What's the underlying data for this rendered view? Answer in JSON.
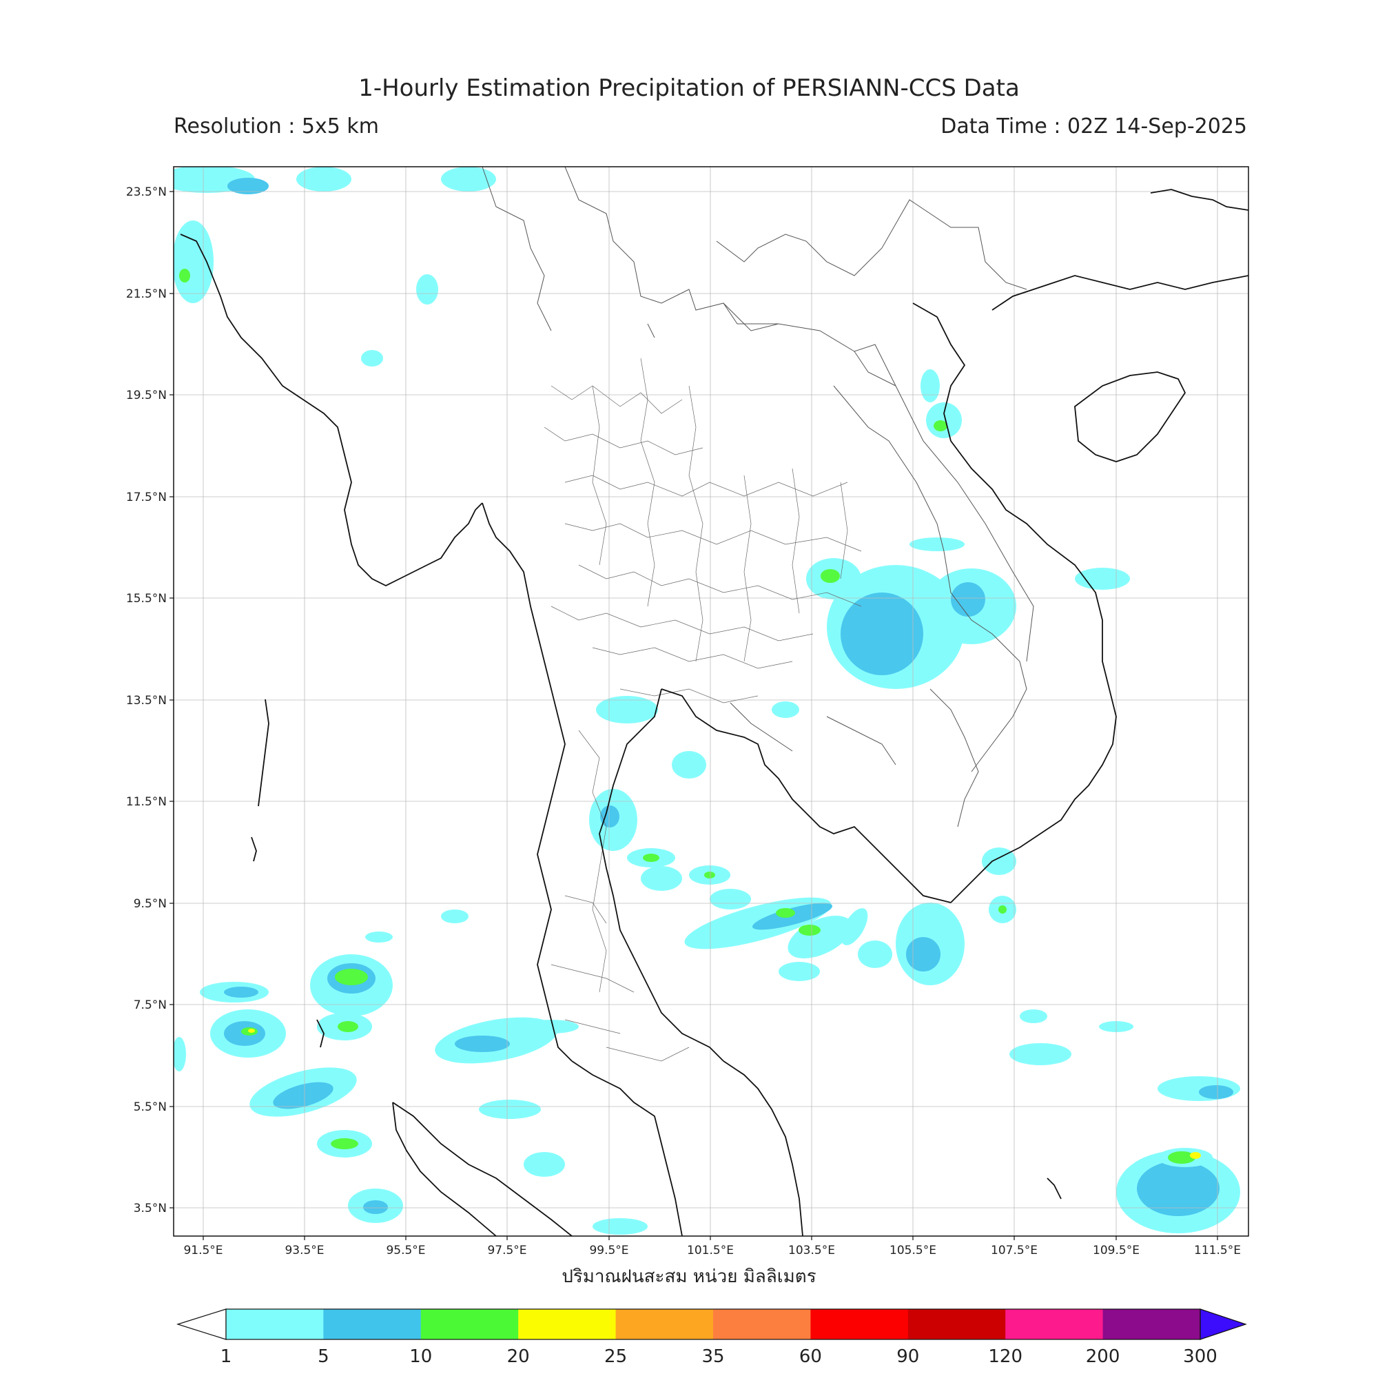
{
  "header": {
    "title": "1-Hourly Estimation Precipitation of PERSIANN-CCS Data",
    "resolution": "Resolution : 5x5 km",
    "data_time": "Data Time : 02Z 14-Sep-2025"
  },
  "map": {
    "lat_ticks": [
      "23.5°N",
      "21.5°N",
      "19.5°N",
      "17.5°N",
      "15.5°N",
      "13.5°N",
      "11.5°N",
      "9.5°N",
      "7.5°N",
      "5.5°N",
      "3.5°N"
    ],
    "lon_ticks": [
      "91.5°E",
      "93.5°E",
      "95.5°E",
      "97.5°E",
      "99.5°E",
      "101.5°E",
      "103.5°E",
      "105.5°E",
      "107.5°E",
      "109.5°E",
      "111.5°E"
    ]
  },
  "colorbar": {
    "unit_label": "ปริมาณฝนสะสม หน่วย มิลลิเมตร",
    "levels": [
      "1",
      "5",
      "10",
      "20",
      "25",
      "35",
      "60",
      "90",
      "120",
      "200",
      "300"
    ],
    "colors": [
      "#7ffcfc",
      "#40c4ec",
      "#4cf935",
      "#fcfc00",
      "#fca622",
      "#fc7f3f",
      "#fc0000",
      "#cc0000",
      "#fc1a8c",
      "#8c0a8c"
    ],
    "extend_color": "#3c0cfc"
  }
}
